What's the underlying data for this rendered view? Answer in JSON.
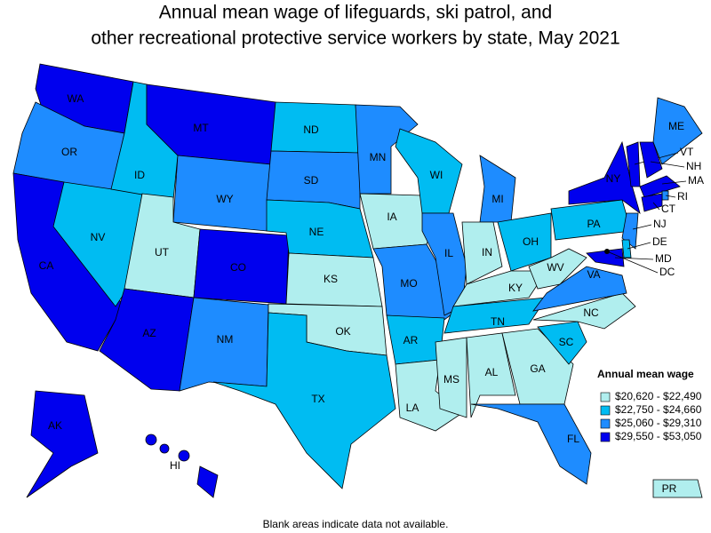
{
  "title": [
    "Annual mean wage of lifeguards, ski patrol, and",
    "other recreational protective service workers by state, May 2021"
  ],
  "legend": {
    "title": "Annual mean wage",
    "bins": [
      {
        "label": "$20,620 - $22,490",
        "color": "#b0eeee"
      },
      {
        "label": "$22,750 - $24,660",
        "color": "#00bcf2"
      },
      {
        "label": "$25,060 - $29,310",
        "color": "#1e8cff"
      },
      {
        "label": "$29,550 - $53,050",
        "color": "#0000ee"
      }
    ]
  },
  "states": [
    {
      "label": "WA",
      "bin": 3
    },
    {
      "label": "OR",
      "bin": 2
    },
    {
      "label": "CA",
      "bin": 3
    },
    {
      "label": "NV",
      "bin": 1
    },
    {
      "label": "ID",
      "bin": 1
    },
    {
      "label": "MT",
      "bin": 3
    },
    {
      "label": "WY",
      "bin": 2
    },
    {
      "label": "UT",
      "bin": 0
    },
    {
      "label": "CO",
      "bin": 3
    },
    {
      "label": "AZ",
      "bin": 3
    },
    {
      "label": "NM",
      "bin": 2
    },
    {
      "label": "ND",
      "bin": 1
    },
    {
      "label": "SD",
      "bin": 2
    },
    {
      "label": "NE",
      "bin": 1
    },
    {
      "label": "KS",
      "bin": 0
    },
    {
      "label": "OK",
      "bin": 0
    },
    {
      "label": "TX",
      "bin": 1
    },
    {
      "label": "MN",
      "bin": 2
    },
    {
      "label": "IA",
      "bin": 0
    },
    {
      "label": "MO",
      "bin": 2
    },
    {
      "label": "AR",
      "bin": 1
    },
    {
      "label": "LA",
      "bin": 0
    },
    {
      "label": "WI",
      "bin": 1
    },
    {
      "label": "IL",
      "bin": 2
    },
    {
      "label": "MI",
      "bin": 2
    },
    {
      "label": "IN",
      "bin": 0
    },
    {
      "label": "OH",
      "bin": 1
    },
    {
      "label": "KY",
      "bin": 0
    },
    {
      "label": "TN",
      "bin": 1
    },
    {
      "label": "MS",
      "bin": 0
    },
    {
      "label": "AL",
      "bin": 0
    },
    {
      "label": "GA",
      "bin": 0
    },
    {
      "label": "FL",
      "bin": 2
    },
    {
      "label": "SC",
      "bin": 1
    },
    {
      "label": "NC",
      "bin": 0
    },
    {
      "label": "VA",
      "bin": 2
    },
    {
      "label": "WV",
      "bin": 0
    },
    {
      "label": "PA",
      "bin": 1
    },
    {
      "label": "NY",
      "bin": 3
    },
    {
      "label": "ME",
      "bin": 2
    },
    {
      "label": "VT",
      "bin": 3
    },
    {
      "label": "NH",
      "bin": 3
    },
    {
      "label": "MA",
      "bin": 3
    },
    {
      "label": "RI",
      "bin": 2
    },
    {
      "label": "CT",
      "bin": 3
    },
    {
      "label": "NJ",
      "bin": 2
    },
    {
      "label": "DE",
      "bin": 1
    },
    {
      "label": "MD",
      "bin": 3
    },
    {
      "label": "DC",
      "bin": 3
    },
    {
      "label": "AK",
      "bin": 3
    },
    {
      "label": "HI",
      "bin": 3
    },
    {
      "label": "PR",
      "bin": 0
    }
  ],
  "footnote": "Blank areas indicate data not available."
}
